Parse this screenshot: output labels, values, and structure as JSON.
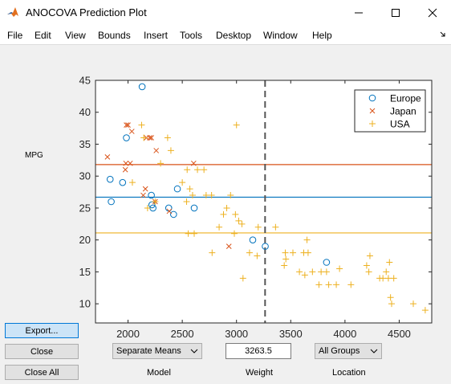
{
  "window": {
    "title": "ANOCOVA Prediction Plot"
  },
  "menu": [
    "File",
    "Edit",
    "View",
    "Bounds",
    "Insert",
    "Tools",
    "Desktop",
    "Window",
    "Help"
  ],
  "buttons": {
    "export": "Export...",
    "close": "Close",
    "close_all": "Close All"
  },
  "controls": {
    "model_value": "Separate Means",
    "model_caption": "Model",
    "weight_value": "3263.5",
    "weight_caption": "Weight",
    "location_value": "All Groups",
    "location_caption": "Location"
  },
  "colors": {
    "europe": "#0072BD",
    "japan": "#D95319",
    "usa": "#EDB120"
  },
  "chart_data": {
    "type": "scatter",
    "ylabel": "MPG",
    "xlabel": "",
    "xlim": [
      1700,
      4800
    ],
    "ylim": [
      7,
      45
    ],
    "x_ticks": [
      2000,
      2500,
      3000,
      3500,
      4000,
      4500
    ],
    "y_ticks": [
      10,
      15,
      20,
      25,
      30,
      35,
      40,
      45
    ],
    "legend_position": "top-right",
    "vertical_line_x": 3263.5,
    "group_mean_lines": [
      {
        "group": "Japan",
        "y": 31.8
      },
      {
        "group": "Europe",
        "y": 26.7
      },
      {
        "group": "USA",
        "y": 21.1
      }
    ],
    "series": [
      {
        "name": "Europe",
        "marker": "circle",
        "color": "#0072BD",
        "points": [
          [
            1835,
            29.5
          ],
          [
            1845,
            26
          ],
          [
            1950,
            29
          ],
          [
            1985,
            36
          ],
          [
            2130,
            44
          ],
          [
            2215,
            27
          ],
          [
            2220,
            25.5
          ],
          [
            2230,
            25
          ],
          [
            2375,
            25
          ],
          [
            2420,
            24
          ],
          [
            2455,
            28
          ],
          [
            2610,
            25
          ],
          [
            3150,
            20
          ],
          [
            3265,
            19
          ],
          [
            3830,
            16.5
          ]
        ]
      },
      {
        "name": "Japan",
        "marker": "x",
        "color": "#D95319",
        "points": [
          [
            1810,
            33
          ],
          [
            1975,
            31
          ],
          [
            1980,
            32
          ],
          [
            1985,
            38
          ],
          [
            2000,
            38
          ],
          [
            2020,
            32
          ],
          [
            2035,
            37
          ],
          [
            2140,
            27
          ],
          [
            2160,
            28
          ],
          [
            2170,
            36
          ],
          [
            2200,
            36
          ],
          [
            2215,
            36
          ],
          [
            2250,
            26
          ],
          [
            2260,
            34
          ],
          [
            2380,
            24.5
          ],
          [
            2605,
            32
          ],
          [
            2930,
            19
          ]
        ]
      },
      {
        "name": "USA",
        "marker": "plus",
        "color": "#EDB120",
        "points": [
          [
            2040,
            29
          ],
          [
            2125,
            38
          ],
          [
            2145,
            36
          ],
          [
            2180,
            25
          ],
          [
            2250,
            26
          ],
          [
            2300,
            32
          ],
          [
            2365,
            36
          ],
          [
            2395,
            34
          ],
          [
            2500,
            29
          ],
          [
            2540,
            26
          ],
          [
            2545,
            31
          ],
          [
            2555,
            21
          ],
          [
            2570,
            28
          ],
          [
            2595,
            27
          ],
          [
            2610,
            21
          ],
          [
            2640,
            31
          ],
          [
            2700,
            31
          ],
          [
            2720,
            27
          ],
          [
            2770,
            27
          ],
          [
            2775,
            18
          ],
          [
            2840,
            22
          ],
          [
            2880,
            24
          ],
          [
            2910,
            25
          ],
          [
            2945,
            27
          ],
          [
            2980,
            21
          ],
          [
            2990,
            24
          ],
          [
            3000,
            38
          ],
          [
            3020,
            23
          ],
          [
            3050,
            22.5
          ],
          [
            3060,
            14
          ],
          [
            3120,
            18
          ],
          [
            3190,
            17.5
          ],
          [
            3200,
            22
          ],
          [
            3360,
            22
          ],
          [
            3440,
            16
          ],
          [
            3450,
            18
          ],
          [
            3455,
            17
          ],
          [
            3520,
            18
          ],
          [
            3580,
            15
          ],
          [
            3620,
            18
          ],
          [
            3630,
            14.5
          ],
          [
            3650,
            20
          ],
          [
            3660,
            18
          ],
          [
            3700,
            15
          ],
          [
            3760,
            13
          ],
          [
            3780,
            15
          ],
          [
            3830,
            15
          ],
          [
            3850,
            13
          ],
          [
            3920,
            13
          ],
          [
            3950,
            15.5
          ],
          [
            4055,
            13
          ],
          [
            4200,
            16
          ],
          [
            4220,
            15
          ],
          [
            4230,
            17.5
          ],
          [
            4320,
            14
          ],
          [
            4350,
            14
          ],
          [
            4380,
            15
          ],
          [
            4400,
            14
          ],
          [
            4410,
            16.5
          ],
          [
            4420,
            11
          ],
          [
            4430,
            10
          ],
          [
            4450,
            14
          ],
          [
            4630,
            10
          ],
          [
            4740,
            9
          ]
        ]
      }
    ]
  }
}
